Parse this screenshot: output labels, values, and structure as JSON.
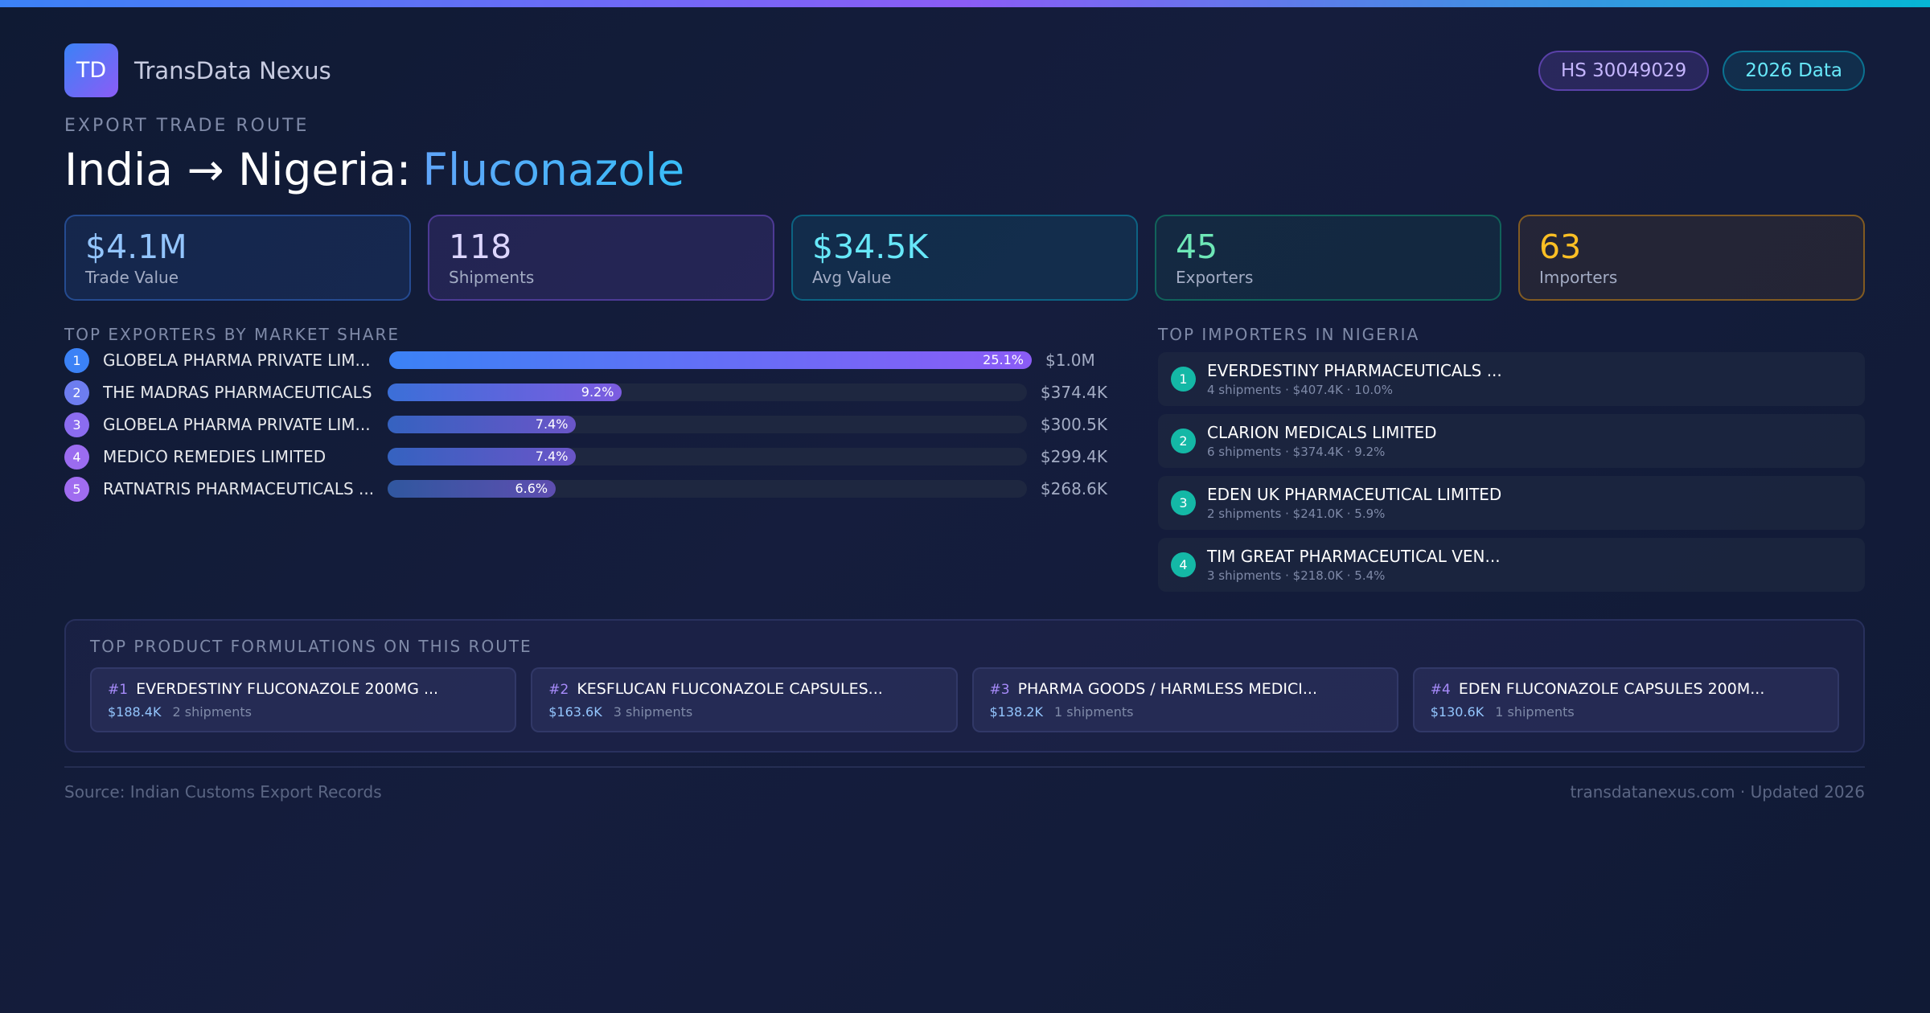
{
  "brand": {
    "logo": "TD",
    "name": "TransData Nexus"
  },
  "badges": [
    "HS 30049029",
    "2026 Data"
  ],
  "header": {
    "eyebrow": "EXPORT TRADE ROUTE",
    "route": "India → Nigeria:",
    "product": "Fluconazole"
  },
  "kpis": [
    {
      "value": "$4.1M",
      "label": "Trade Value"
    },
    {
      "value": "118",
      "label": "Shipments"
    },
    {
      "value": "$34.5K",
      "label": "Avg Value"
    },
    {
      "value": "45",
      "label": "Exporters"
    },
    {
      "value": "63",
      "label": "Importers"
    }
  ],
  "exporters": {
    "title": "TOP EXPORTERS BY MARKET SHARE",
    "rows": [
      {
        "rank": 1,
        "name": "GLOBELA PHARMA PRIVATE LIM...",
        "share": 25.1,
        "share_label": "25.1%",
        "value": "$1.0M"
      },
      {
        "rank": 2,
        "name": "THE MADRAS PHARMACEUTICALS",
        "share": 9.2,
        "share_label": "9.2%",
        "value": "$374.4K"
      },
      {
        "rank": 3,
        "name": "GLOBELA PHARMA PRIVATE LIM...",
        "share": 7.4,
        "share_label": "7.4%",
        "value": "$300.5K"
      },
      {
        "rank": 4,
        "name": "MEDICO REMEDIES LIMITED",
        "share": 7.4,
        "share_label": "7.4%",
        "value": "$299.4K"
      },
      {
        "rank": 5,
        "name": "RATNATRIS PHARMACEUTICALS ...",
        "share": 6.6,
        "share_label": "6.6%",
        "value": "$268.6K"
      }
    ]
  },
  "importers": {
    "title": "TOP IMPORTERS IN NIGERIA",
    "rows": [
      {
        "rank": 1,
        "name": "EVERDESTINY PHARMACEUTICALS ...",
        "details": "4 shipments · $407.4K · 10.0%"
      },
      {
        "rank": 2,
        "name": "CLARION MEDICALS LIMITED",
        "details": "6 shipments · $374.4K · 9.2%"
      },
      {
        "rank": 3,
        "name": "EDEN UK PHARMACEUTICAL LIMITED",
        "details": "2 shipments · $241.0K · 5.9%"
      },
      {
        "rank": 4,
        "name": "TIM GREAT PHARMACEUTICAL VEN...",
        "details": "3 shipments · $218.0K · 5.4%"
      }
    ]
  },
  "products": {
    "title": "TOP PRODUCT FORMULATIONS ON THIS ROUTE",
    "items": [
      {
        "rank": "#1",
        "name": "EVERDESTINY FLUCONAZOLE 200MG ...",
        "value": "$188.4K",
        "shipments": "2 shipments"
      },
      {
        "rank": "#2",
        "name": "KESFLUCAN FLUCONAZOLE CAPSULES...",
        "value": "$163.6K",
        "shipments": "3 shipments"
      },
      {
        "rank": "#3",
        "name": "PHARMA GOODS / HARMLESS MEDICI...",
        "value": "$138.2K",
        "shipments": "1 shipments"
      },
      {
        "rank": "#4",
        "name": "EDEN FLUCONAZOLE CAPSULES 200M...",
        "value": "$130.6K",
        "shipments": "1 shipments"
      }
    ]
  },
  "footer": {
    "source": "Source: Indian Customs Export Records",
    "site": "transdatanexus.com · Updated 2026"
  }
}
